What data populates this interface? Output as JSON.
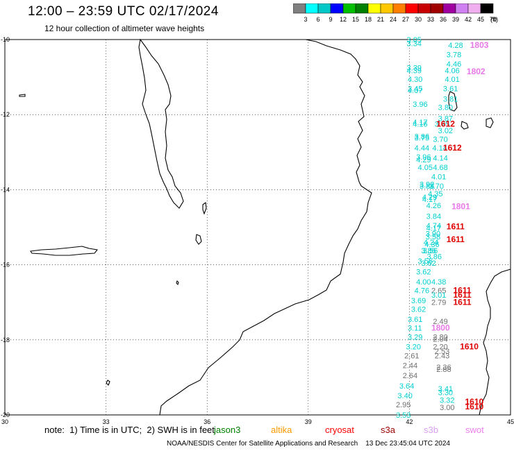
{
  "title": "12:00 – 23:59 UTC 02/17/2024",
  "subtitle": "12 hour collection of altimeter wave heights",
  "colorbar": {
    "colors": [
      "#808080",
      "#00ffff",
      "#00c8c8",
      "#0000ff",
      "#00c000",
      "#008000",
      "#ffff00",
      "#ffc800",
      "#ff8000",
      "#ff0000",
      "#c80000",
      "#a00000",
      "#a000a0",
      "#d080f0",
      "#f0b0f0",
      "#000000"
    ],
    "labels": [
      "3",
      "6",
      "9",
      "12",
      "15",
      "18",
      "21",
      "24",
      "27",
      "30",
      "33",
      "36",
      "39",
      "42",
      "45",
      "70"
    ],
    "unit": "(ft)"
  },
  "map": {
    "lon_ticks": [
      "30",
      "33",
      "36",
      "39",
      "42",
      "45"
    ],
    "lat_ticks": [
      "-10",
      "-12",
      "-14",
      "-16",
      "-18",
      "-20"
    ]
  },
  "observations": [
    {
      "t": "3.05",
      "lon": 41.92,
      "lat": -10.0,
      "c": "#00d0d0"
    },
    {
      "t": "3.34",
      "lon": 41.92,
      "lat": -10.1,
      "c": "#00d0d0"
    },
    {
      "t": "4.28",
      "lon": 43.15,
      "lat": -10.15,
      "c": "#00d0d0"
    },
    {
      "t": "3.78",
      "lon": 43.1,
      "lat": -10.4,
      "c": "#00d0d0"
    },
    {
      "t": "4.46",
      "lon": 43.1,
      "lat": -10.65,
      "c": "#00d0d0"
    },
    {
      "t": "3.39",
      "lon": 41.92,
      "lat": -10.75,
      "c": "#00d0d0"
    },
    {
      "t": "4.39",
      "lon": 41.92,
      "lat": -10.82,
      "c": "#00d0d0"
    },
    {
      "t": "4.06",
      "lon": 43.05,
      "lat": -10.82,
      "c": "#00d0d0"
    },
    {
      "t": "4.30",
      "lon": 41.95,
      "lat": -11.05,
      "c": "#00d0d0"
    },
    {
      "t": "4.01",
      "lon": 43.05,
      "lat": -11.05,
      "c": "#00d0d0"
    },
    {
      "t": "3.45",
      "lon": 41.95,
      "lat": -11.3,
      "c": "#00d0d0"
    },
    {
      "t": "4.07",
      "lon": 41.95,
      "lat": -11.35,
      "c": "#00d0d0"
    },
    {
      "t": "3.61",
      "lon": 43.0,
      "lat": -11.3,
      "c": "#00d0d0"
    },
    {
      "t": "3.81",
      "lon": 43.0,
      "lat": -11.58,
      "c": "#00d0d0"
    },
    {
      "t": "3.96",
      "lon": 42.1,
      "lat": -11.72,
      "c": "#00d0d0"
    },
    {
      "t": "3.80",
      "lon": 42.85,
      "lat": -11.8,
      "c": "#00d0d0"
    },
    {
      "t": "3.87",
      "lon": 42.85,
      "lat": -12.1,
      "c": "#00d0d0"
    },
    {
      "t": "4.17",
      "lon": 42.1,
      "lat": -12.2,
      "c": "#00d0d0"
    },
    {
      "t": "4.16",
      "lon": 42.1,
      "lat": -12.25,
      "c": "#00d0d0"
    },
    {
      "t": "3.75",
      "lon": 42.75,
      "lat": -12.25,
      "c": "#00d0d0"
    },
    {
      "t": "3.02",
      "lon": 42.85,
      "lat": -12.42,
      "c": "#00d0d0"
    },
    {
      "t": "3.86",
      "lon": 42.15,
      "lat": -12.58,
      "c": "#00d0d0"
    },
    {
      "t": "3.75",
      "lon": 42.15,
      "lat": -12.62,
      "c": "#00d0d0"
    },
    {
      "t": "3.70",
      "lon": 42.7,
      "lat": -12.65,
      "c": "#00d0d0"
    },
    {
      "t": "4.44",
      "lon": 42.15,
      "lat": -12.88,
      "c": "#00d0d0"
    },
    {
      "t": "4.14",
      "lon": 42.68,
      "lat": -12.88,
      "c": "#00d0d0"
    },
    {
      "t": "3.96",
      "lon": 42.2,
      "lat": -13.12,
      "c": "#00d0d0"
    },
    {
      "t": "4.14",
      "lon": 42.7,
      "lat": -13.15,
      "c": "#00d0d0"
    },
    {
      "t": "4.29",
      "lon": 42.2,
      "lat": -13.2,
      "c": "#00d0d0"
    },
    {
      "t": "4.05",
      "lon": 42.25,
      "lat": -13.4,
      "c": "#00d0d0"
    },
    {
      "t": "4.68",
      "lon": 42.7,
      "lat": -13.4,
      "c": "#00d0d0"
    },
    {
      "t": "4.01",
      "lon": 42.65,
      "lat": -13.65,
      "c": "#00d0d0"
    },
    {
      "t": "3.92",
      "lon": 42.3,
      "lat": -13.85,
      "c": "#00d0d0"
    },
    {
      "t": "3.88",
      "lon": 42.3,
      "lat": -13.9,
      "c": "#00d0d0"
    },
    {
      "t": "3.70",
      "lon": 42.58,
      "lat": -13.9,
      "c": "#00d0d0"
    },
    {
      "t": "4.35",
      "lon": 42.55,
      "lat": -14.1,
      "c": "#00d0d0"
    },
    {
      "t": "4.29",
      "lon": 42.38,
      "lat": -14.2,
      "c": "#00d0d0"
    },
    {
      "t": "4.17",
      "lon": 42.38,
      "lat": -14.25,
      "c": "#00d0d0"
    },
    {
      "t": "4.26",
      "lon": 42.5,
      "lat": -14.42,
      "c": "#00d0d0"
    },
    {
      "t": "3.84",
      "lon": 42.5,
      "lat": -14.7,
      "c": "#00d0d0"
    },
    {
      "t": "4.74",
      "lon": 42.5,
      "lat": -14.95,
      "c": "#00d0d0"
    },
    {
      "t": "4.17",
      "lon": 42.5,
      "lat": -15.02,
      "c": "#00d0d0"
    },
    {
      "t": "3.90",
      "lon": 42.48,
      "lat": -15.17,
      "c": "#00d0d0"
    },
    {
      "t": "3.58",
      "lon": 42.48,
      "lat": -15.25,
      "c": "#00d0d0"
    },
    {
      "t": "4.24",
      "lon": 42.42,
      "lat": -15.4,
      "c": "#00d0d0"
    },
    {
      "t": "4.36",
      "lon": 42.45,
      "lat": -15.45,
      "c": "#00d0d0"
    },
    {
      "t": "3.86",
      "lon": 42.35,
      "lat": -15.62,
      "c": "#00d0d0"
    },
    {
      "t": "3.56",
      "lon": 42.4,
      "lat": -15.62,
      "c": "#00d0d0"
    },
    {
      "t": "3.86",
      "lon": 42.52,
      "lat": -15.78,
      "c": "#00d0d0"
    },
    {
      "t": "3.56",
      "lon": 42.25,
      "lat": -15.9,
      "c": "#00d0d0"
    },
    {
      "t": "3.62",
      "lon": 42.35,
      "lat": -15.95,
      "c": "#00d0d0"
    },
    {
      "t": "3.62",
      "lon": 42.2,
      "lat": -16.18,
      "c": "#00d0d0"
    },
    {
      "t": "4.00",
      "lon": 42.2,
      "lat": -16.45,
      "c": "#00d0d0"
    },
    {
      "t": "4.38",
      "lon": 42.65,
      "lat": -16.45,
      "c": "#00d0d0"
    },
    {
      "t": "4.76",
      "lon": 42.15,
      "lat": -16.68,
      "c": "#00d0d0"
    },
    {
      "t": "2.65",
      "lon": 42.65,
      "lat": -16.68,
      "c": "#707070"
    },
    {
      "t": "3.01",
      "lon": 42.65,
      "lat": -16.8,
      "c": "#00d0d0"
    },
    {
      "t": "3.69",
      "lon": 42.05,
      "lat": -16.95,
      "c": "#00d0d0"
    },
    {
      "t": "2.79",
      "lon": 42.65,
      "lat": -17.0,
      "c": "#707070"
    },
    {
      "t": "3.62",
      "lon": 42.05,
      "lat": -17.18,
      "c": "#00d0d0"
    },
    {
      "t": "3.61",
      "lon": 41.95,
      "lat": -17.45,
      "c": "#00d0d0"
    },
    {
      "t": "2.49",
      "lon": 42.7,
      "lat": -17.5,
      "c": "#707070"
    },
    {
      "t": "3.11",
      "lon": 41.95,
      "lat": -17.68,
      "c": "#00d0d0"
    },
    {
      "t": "3.29",
      "lon": 41.95,
      "lat": -17.92,
      "c": "#00d0d0"
    },
    {
      "t": "2.80",
      "lon": 42.7,
      "lat": -17.92,
      "c": "#707070"
    },
    {
      "t": "2.04",
      "lon": 42.7,
      "lat": -17.98,
      "c": "#707070"
    },
    {
      "t": "3.20",
      "lon": 41.9,
      "lat": -18.18,
      "c": "#00d0d0"
    },
    {
      "t": "2.20",
      "lon": 42.7,
      "lat": -18.18,
      "c": "#707070"
    },
    {
      "t": "2.53",
      "lon": 42.75,
      "lat": -18.3,
      "c": "#707070"
    },
    {
      "t": "2.61",
      "lon": 41.85,
      "lat": -18.42,
      "c": "#707070"
    },
    {
      "t": "2.43",
      "lon": 42.75,
      "lat": -18.42,
      "c": "#707070"
    },
    {
      "t": "2.44",
      "lon": 41.8,
      "lat": -18.68,
      "c": "#707070"
    },
    {
      "t": "2.36",
      "lon": 42.8,
      "lat": -18.72,
      "c": "#707070"
    },
    {
      "t": "2.88",
      "lon": 42.8,
      "lat": -18.78,
      "c": "#707070"
    },
    {
      "t": "2.64",
      "lon": 41.8,
      "lat": -18.95,
      "c": "#707070"
    },
    {
      "t": "3.64",
      "lon": 41.7,
      "lat": -19.22,
      "c": "#00d0d0"
    },
    {
      "t": "3.41",
      "lon": 42.85,
      "lat": -19.3,
      "c": "#00d0d0"
    },
    {
      "t": "3.30",
      "lon": 42.85,
      "lat": -19.4,
      "c": "#00d0d0"
    },
    {
      "t": "3.40",
      "lon": 41.65,
      "lat": -19.48,
      "c": "#00d0d0"
    },
    {
      "t": "3.32",
      "lon": 42.9,
      "lat": -19.6,
      "c": "#00d0d0"
    },
    {
      "t": "2.95",
      "lon": 41.6,
      "lat": -19.72,
      "c": "#707070"
    },
    {
      "t": "3.00",
      "lon": 42.9,
      "lat": -19.8,
      "c": "#707070"
    },
    {
      "t": "3.53",
      "lon": 41.6,
      "lat": -20.0,
      "c": "#00d0d0"
    }
  ],
  "pass_labels": [
    {
      "t": "1803",
      "lon": 43.8,
      "lat": -10.15,
      "c": "#e878e8"
    },
    {
      "t": "1802",
      "lon": 43.7,
      "lat": -10.85,
      "c": "#e878e8"
    },
    {
      "t": "1612",
      "lon": 42.8,
      "lat": -12.25,
      "c": "#e00000"
    },
    {
      "t": "1612",
      "lon": 43.0,
      "lat": -12.88,
      "c": "#e00000"
    },
    {
      "t": "1801",
      "lon": 43.25,
      "lat": -14.45,
      "c": "#e878e8"
    },
    {
      "t": "1611",
      "lon": 43.1,
      "lat": -14.98,
      "c": "#e00000"
    },
    {
      "t": "1611",
      "lon": 43.1,
      "lat": -15.32,
      "c": "#e00000"
    },
    {
      "t": "1611",
      "lon": 43.3,
      "lat": -16.68,
      "c": "#e00000"
    },
    {
      "t": "1611",
      "lon": 43.3,
      "lat": -16.8,
      "c": "#e00000"
    },
    {
      "t": "1611",
      "lon": 43.3,
      "lat": -17.0,
      "c": "#e00000"
    },
    {
      "t": "1800",
      "lon": 42.65,
      "lat": -17.68,
      "c": "#e878e8"
    },
    {
      "t": "1610",
      "lon": 43.5,
      "lat": -18.18,
      "c": "#e00000"
    },
    {
      "t": "1610",
      "lon": 43.65,
      "lat": -19.65,
      "c": "#e00000"
    },
    {
      "t": "1610",
      "lon": 43.65,
      "lat": -19.78,
      "c": "#e00000"
    }
  ],
  "note": "note:  1) Time is in UTC;  2) SWH is in feet",
  "missions": [
    {
      "name": "jason3",
      "color": "#008000"
    },
    {
      "name": "altika",
      "color": "#ff9900"
    },
    {
      "name": "cryosat",
      "color": "#ff0000"
    },
    {
      "name": "s3a",
      "color": "#990000"
    },
    {
      "name": "s3b",
      "color": "#d8a0f0"
    },
    {
      "name": "swot",
      "color": "#f080f0"
    }
  ],
  "footer": "NOAA/NESDIS Center for Satellite Applications and Research    13 Dec 23:45:04 UTC 2024"
}
